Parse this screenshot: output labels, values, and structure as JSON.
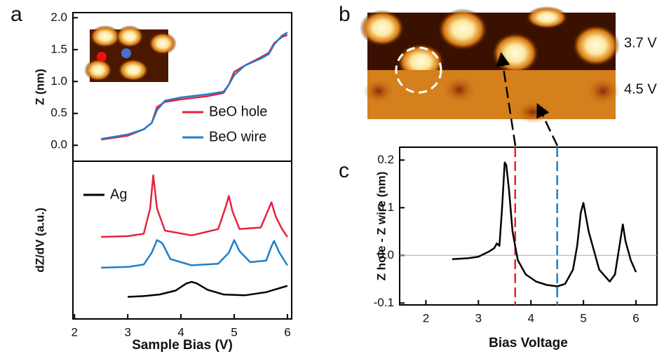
{
  "chart_data": [
    {
      "type": "line",
      "panel": "a",
      "y_label": "Z (nm)",
      "xlim": [
        1.97,
        6.08
      ],
      "ylim": [
        -0.25,
        2.08
      ],
      "yticks": [
        {
          "value": 0,
          "label": "0.0"
        },
        0.5,
        {
          "value": 1,
          "label": "1.0"
        },
        1.5,
        {
          "value": 2,
          "label": "2.0"
        }
      ],
      "legend": "lower right",
      "x": [
        2.5,
        3.0,
        3.3,
        3.45,
        3.55,
        3.7,
        4.0,
        4.5,
        4.8,
        4.9,
        5.0,
        5.2,
        5.5,
        5.65,
        5.75,
        5.9,
        6.0
      ],
      "series": [
        {
          "name": "BeO hole",
          "color": "#e8213a",
          "values": [
            0.09,
            0.15,
            0.25,
            0.35,
            0.6,
            0.68,
            0.72,
            0.77,
            0.82,
            0.95,
            1.15,
            1.25,
            1.38,
            1.45,
            1.6,
            1.7,
            1.73
          ]
        },
        {
          "name": "BeO wire",
          "color": "#1f7fc8",
          "values": [
            0.1,
            0.17,
            0.25,
            0.35,
            0.55,
            0.7,
            0.75,
            0.8,
            0.84,
            0.95,
            1.1,
            1.25,
            1.36,
            1.43,
            1.58,
            1.72,
            1.77
          ]
        }
      ]
    },
    {
      "type": "line",
      "x_label": "Sample Bias (V)",
      "y_label": "dZ/dV (a.u.)",
      "xlim": [
        1.97,
        6.08
      ],
      "ylim": [
        0,
        10
      ],
      "xticks": [
        2,
        3,
        4,
        5,
        6
      ],
      "legend": "upper left",
      "series": [
        {
          "color": "#e8213a",
          "x": [
            2.5,
            3.0,
            3.3,
            3.42,
            3.48,
            3.55,
            3.7,
            4.2,
            4.7,
            4.85,
            4.9,
            4.97,
            5.1,
            5.5,
            5.65,
            5.7,
            5.78,
            5.9,
            6.0
          ],
          "values": [
            5.2,
            5.25,
            5.4,
            7.0,
            9.1,
            7.0,
            5.6,
            5.3,
            5.7,
            7.2,
            7.8,
            6.8,
            5.7,
            5.8,
            7.0,
            7.4,
            6.5,
            5.7,
            5.2
          ]
        },
        {
          "color": "#1f7fc8",
          "x": [
            2.5,
            3.0,
            3.3,
            3.45,
            3.55,
            3.65,
            3.8,
            4.2,
            4.7,
            4.9,
            5.0,
            5.1,
            5.3,
            5.6,
            5.7,
            5.75,
            5.85,
            6.0
          ],
          "values": [
            3.25,
            3.3,
            3.45,
            4.2,
            5.0,
            4.8,
            3.8,
            3.4,
            3.5,
            4.2,
            5.0,
            4.3,
            3.6,
            3.7,
            4.6,
            4.95,
            4.2,
            3.4
          ]
        },
        {
          "name": "Ag",
          "color": "#000000",
          "x": [
            3.0,
            3.3,
            3.6,
            3.9,
            4.1,
            4.2,
            4.3,
            4.5,
            4.8,
            5.2,
            5.6,
            5.9,
            6.0
          ],
          "values": [
            1.4,
            1.45,
            1.55,
            1.8,
            2.25,
            2.35,
            2.25,
            1.85,
            1.55,
            1.5,
            1.7,
            2.0,
            2.1
          ]
        }
      ]
    },
    {
      "type": "image",
      "panel": "b",
      "labels": [
        "3.7 V",
        "4.5 V"
      ]
    },
    {
      "type": "line",
      "panel": "c",
      "x_label": "Bias Voltage",
      "y_label": "Z hole - Z wire (nm)",
      "xlim": [
        1.5,
        6.4
      ],
      "ylim": [
        -0.104,
        0.227
      ],
      "xticks": [
        2,
        3,
        4,
        5,
        6
      ],
      "yticks": [
        -0.1,
        {
          "value": 0,
          "label": "0.0"
        },
        0.1,
        0.2
      ],
      "zero_line": true,
      "vlines": [
        {
          "x": 3.7,
          "color": "#e8213a"
        },
        {
          "x": 4.5,
          "color": "#1f7fc8"
        }
      ],
      "x": [
        2.5,
        2.8,
        3.0,
        3.2,
        3.3,
        3.35,
        3.4,
        3.45,
        3.5,
        3.53,
        3.58,
        3.65,
        3.75,
        3.9,
        4.1,
        4.3,
        4.5,
        4.65,
        4.8,
        4.88,
        4.95,
        5.0,
        5.1,
        5.3,
        5.5,
        5.6,
        5.7,
        5.75,
        5.8,
        5.9,
        6.0
      ],
      "series": [
        {
          "color": "#000000",
          "values": [
            -0.008,
            -0.006,
            -0.003,
            0.008,
            0.015,
            0.025,
            0.02,
            0.1,
            0.195,
            0.19,
            0.14,
            0.05,
            -0.01,
            -0.04,
            -0.055,
            -0.062,
            -0.065,
            -0.06,
            -0.03,
            0.02,
            0.09,
            0.11,
            0.05,
            -0.03,
            -0.055,
            -0.04,
            0.03,
            0.065,
            0.03,
            -0.01,
            -0.035
          ]
        }
      ]
    }
  ]
}
